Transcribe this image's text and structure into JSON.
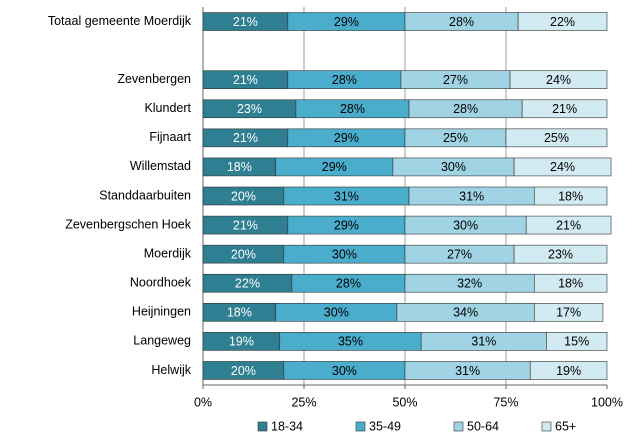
{
  "chart_data": {
    "type": "stacked-bar-horizontal",
    "categories": [
      "Totaal gemeente Moerdijk",
      null,
      "Zevenbergen",
      "Klundert",
      "Fijnaart",
      "Willemstad",
      "Standdaarbuiten",
      "Zevenbergschen Hoek",
      "Moerdijk",
      "Noordhoek",
      "Heijningen",
      "Langeweg",
      "Helwijk"
    ],
    "series": [
      {
        "name": "18-34",
        "color": "#2f7f93",
        "text_color": "#ffffff",
        "values": [
          21,
          null,
          21,
          23,
          21,
          18,
          20,
          21,
          20,
          22,
          18,
          19,
          20
        ],
        "value_labels": [
          "21%",
          null,
          "21%",
          "23%",
          "21%",
          "18%",
          "20%",
          "21%",
          "20%",
          "22%",
          "18%",
          "19%",
          "20%"
        ]
      },
      {
        "name": "35-49",
        "color": "#4badcc",
        "text_color": "#000000",
        "values": [
          29,
          null,
          28,
          28,
          29,
          29,
          31,
          29,
          30,
          28,
          30,
          35,
          30
        ],
        "value_labels": [
          "29%",
          null,
          "28%",
          "28%",
          "29%",
          "29%",
          "31%",
          "29%",
          "30%",
          "28%",
          "30%",
          "35%",
          "30%"
        ]
      },
      {
        "name": "50-64",
        "color": "#a0d4e4",
        "text_color": "#000000",
        "values": [
          28,
          null,
          27,
          28,
          25,
          30,
          31,
          30,
          27,
          32,
          34,
          31,
          31
        ],
        "value_labels": [
          "28%",
          null,
          "27%",
          "28%",
          "25%",
          "30%",
          "31%",
          "30%",
          "27%",
          "32%",
          "34%",
          "31%",
          "31%"
        ]
      },
      {
        "name": "65+",
        "color": "#d2eaf2",
        "text_color": "#000000",
        "values": [
          22,
          null,
          24,
          21,
          25,
          24,
          18,
          21,
          23,
          18,
          17,
          15,
          19
        ],
        "value_labels": [
          "22%",
          null,
          "24%",
          "21%",
          "25%",
          "24%",
          "18%",
          "21%",
          "23%",
          "18%",
          "17%",
          "15%",
          "19%"
        ]
      }
    ],
    "xlim": [
      0,
      100
    ],
    "xticks": [
      {
        "value": 0,
        "label": "0%"
      },
      {
        "value": 25,
        "label": "25%"
      },
      {
        "value": 50,
        "label": "50%"
      },
      {
        "value": 75,
        "label": "75%"
      },
      {
        "value": 100,
        "label": "100%"
      }
    ],
    "grid": true,
    "legend": "bottom"
  }
}
